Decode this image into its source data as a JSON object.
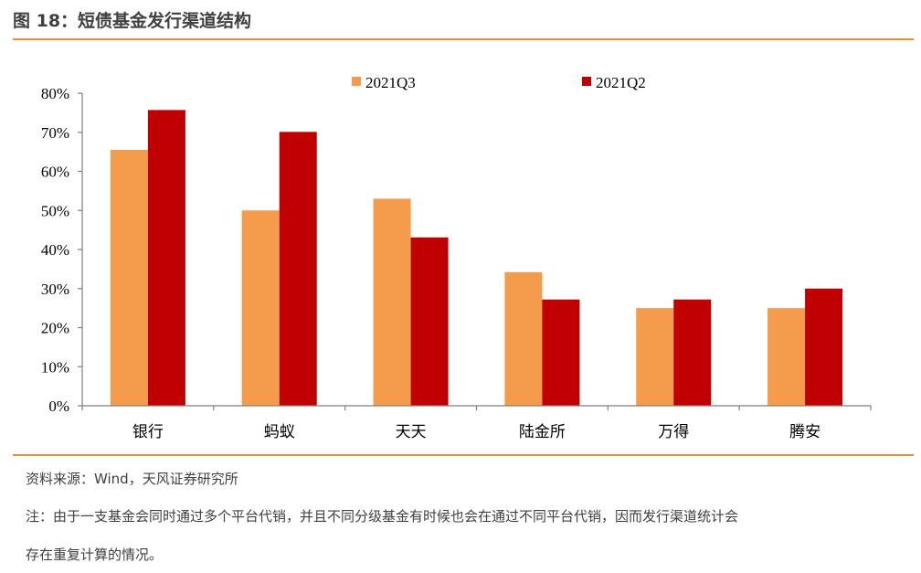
{
  "header": {
    "title": "图 18：短债基金发行渠道结构"
  },
  "footer": {
    "source": "资料来源：Wind，天风证券研究所",
    "note_line1": "注：由于一支基金会同时通过多个平台代销，并且不同分级基金有时候也会在通过不同平台代销，因而发行渠道统计会",
    "note_line2": "存在重复计算的情况。"
  },
  "colors": {
    "rule": "#ef8a2e",
    "series1": "#f59b4c",
    "series2": "#c00000",
    "axis": "#7f7f7f"
  },
  "chart_data": {
    "type": "bar",
    "categories": [
      "银行",
      "蚂蚁",
      "天天",
      "陆金所",
      "万得",
      "腾安"
    ],
    "series": [
      {
        "name": "2021Q3",
        "values": [
          0.655,
          0.5,
          0.53,
          0.342,
          0.25,
          0.25
        ]
      },
      {
        "name": "2021Q2",
        "values": [
          0.757,
          0.701,
          0.431,
          0.272,
          0.272,
          0.3
        ]
      }
    ],
    "yticks": [
      "0%",
      "10%",
      "20%",
      "30%",
      "40%",
      "50%",
      "60%",
      "70%",
      "80%"
    ],
    "ylim": [
      0,
      0.8
    ],
    "grid": false,
    "legend_position": "top"
  }
}
